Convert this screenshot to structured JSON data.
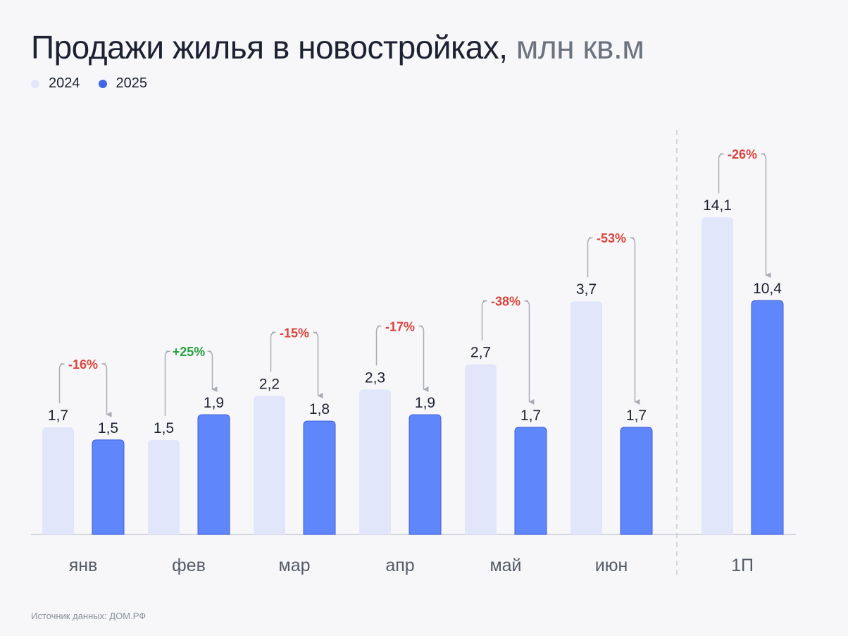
{
  "title": {
    "main": "Продажи жилья в новостройках,",
    "unit": "млн кв.м"
  },
  "legend": [
    {
      "label": "2024",
      "color": "#e1e6fb"
    },
    {
      "label": "2025",
      "color": "#3f66e6"
    }
  ],
  "source": "Источник данных: ДОМ.РФ",
  "colors": {
    "bar_2024": "#e1e6fb",
    "bar_2025": "#5f86fb",
    "bar_2025_stroke": "#3f5fd6",
    "negative": "#d9453d",
    "positive": "#26a33f",
    "bracket": "#a9adb4",
    "axis": "#c9ccd3"
  },
  "chart_data": {
    "type": "bar",
    "categories": [
      "янв",
      "фев",
      "мар",
      "апр",
      "май",
      "июн",
      "1П"
    ],
    "series": [
      {
        "name": "2024",
        "values": [
          1.7,
          1.5,
          2.2,
          2.3,
          2.7,
          3.7,
          14.1
        ]
      },
      {
        "name": "2025",
        "values": [
          1.5,
          1.9,
          1.8,
          1.9,
          1.7,
          1.7,
          10.4
        ]
      }
    ],
    "value_labels": {
      "2024": [
        "1,7",
        "1,5",
        "2,2",
        "2,3",
        "2,7",
        "3,7",
        "14,1"
      ],
      "2025": [
        "1,5",
        "1,9",
        "1,8",
        "1,9",
        "1,7",
        "1,7",
        "10,4"
      ]
    },
    "changes": [
      "-16%",
      "+25%",
      "-15%",
      "-17%",
      "-38%",
      "-53%",
      "-26%"
    ],
    "separate_scale_for": "1П",
    "grid": false,
    "legend_position": "top-left"
  }
}
